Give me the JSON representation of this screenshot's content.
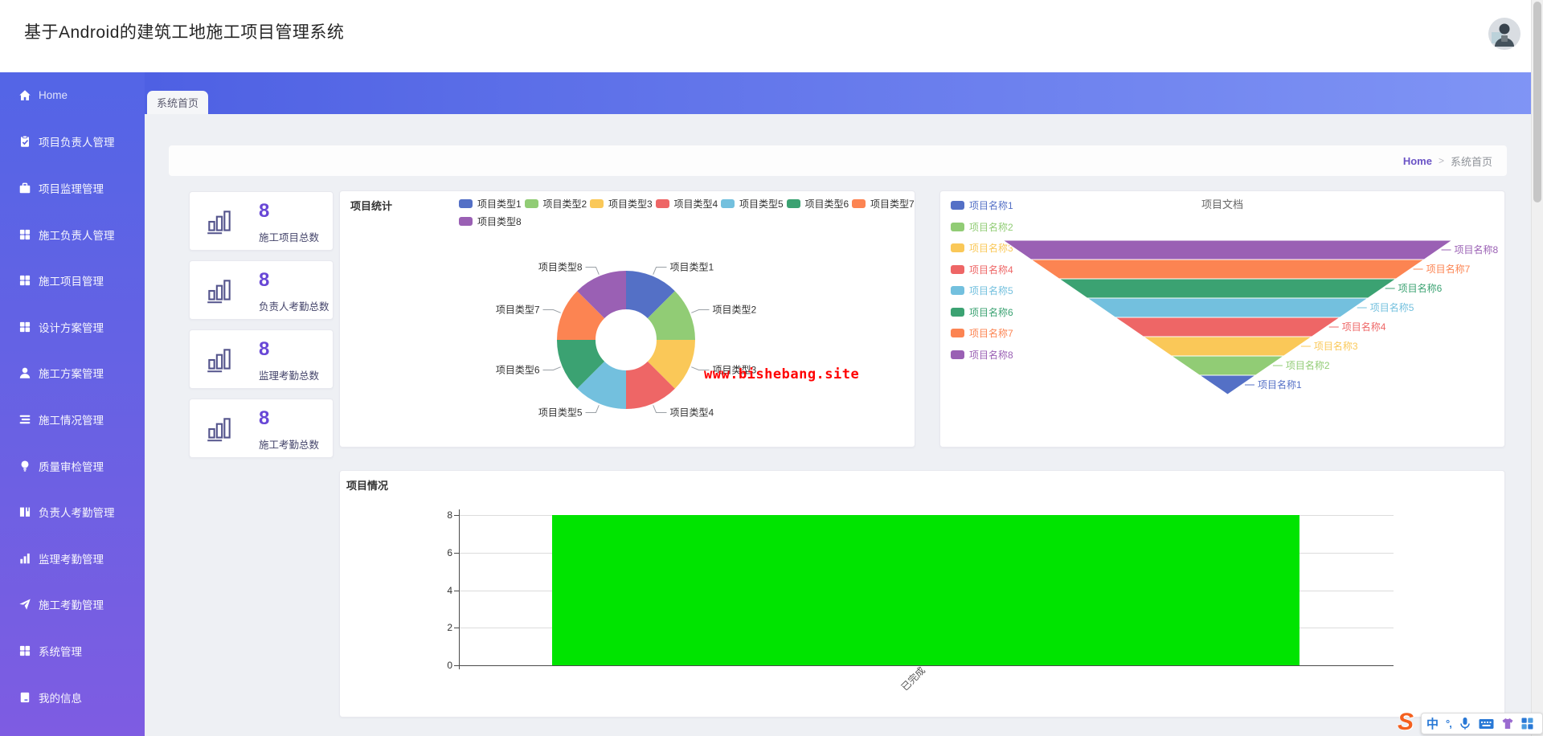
{
  "header": {
    "title": "基于Android的建筑工地施工项目管理系统"
  },
  "sidebar": {
    "items": [
      {
        "label": "Home",
        "icon": "home-icon"
      },
      {
        "label": "项目负责人管理",
        "icon": "clipboard-check-icon"
      },
      {
        "label": "项目监理管理",
        "icon": "briefcase-icon"
      },
      {
        "label": "施工负责人管理",
        "icon": "grid-icon"
      },
      {
        "label": "施工项目管理",
        "icon": "grid-icon"
      },
      {
        "label": "设计方案管理",
        "icon": "grid-icon"
      },
      {
        "label": "施工方案管理",
        "icon": "user-icon"
      },
      {
        "label": "施工情况管理",
        "icon": "list-icon"
      },
      {
        "label": "质量审检管理",
        "icon": "bulb-icon"
      },
      {
        "label": "负责人考勤管理",
        "icon": "book-icon"
      },
      {
        "label": "监理考勤管理",
        "icon": "barchart-icon"
      },
      {
        "label": "施工考勤管理",
        "icon": "send-icon"
      },
      {
        "label": "系统管理",
        "icon": "grid-icon"
      },
      {
        "label": "我的信息",
        "icon": "notebook-icon"
      }
    ]
  },
  "tabs": [
    {
      "label": "系统首页",
      "active": true
    }
  ],
  "breadcrumb": {
    "home": "Home",
    "separator": ">",
    "current": "系统首页"
  },
  "stats": [
    {
      "value": "8",
      "label": "施工项目总数",
      "icon": "bars-icon"
    },
    {
      "value": "8",
      "label": "负责人考勤总数",
      "icon": "bars-icon"
    },
    {
      "value": "8",
      "label": "监理考勤总数",
      "icon": "bars-icon"
    },
    {
      "value": "8",
      "label": "施工考勤总数",
      "icon": "bars-icon"
    }
  ],
  "watermark": {
    "text": "www.bishebang.site",
    "color": "#ff0000"
  },
  "palette": [
    "#5470c6",
    "#91cc75",
    "#fac858",
    "#ee6666",
    "#73c0de",
    "#3ba272",
    "#fc8452",
    "#9a60b4"
  ],
  "chart_data": [
    {
      "type": "pie",
      "title": "项目统计",
      "labels": [
        "项目类型1",
        "项目类型2",
        "项目类型3",
        "项目类型4",
        "项目类型5",
        "项目类型6",
        "项目类型7",
        "项目类型8"
      ],
      "values": [
        1,
        1,
        1,
        1,
        1,
        1,
        1,
        1
      ],
      "colors": [
        "#5470c6",
        "#91cc75",
        "#fac858",
        "#ee6666",
        "#73c0de",
        "#3ba272",
        "#fc8452",
        "#9a60b4"
      ],
      "donut": true,
      "legend_position": "top"
    },
    {
      "type": "funnel",
      "title": "项目文档",
      "labels": [
        "项目名称1",
        "项目名称2",
        "项目名称3",
        "项目名称4",
        "项目名称5",
        "项目名称6",
        "项目名称7",
        "项目名称8"
      ],
      "values": [
        1,
        2,
        3,
        4,
        5,
        6,
        7,
        8
      ],
      "colors": [
        "#5470c6",
        "#91cc75",
        "#fac858",
        "#ee6666",
        "#73c0de",
        "#3ba272",
        "#fc8452",
        "#9a60b4"
      ],
      "sort": "descending-top-wide",
      "legend_position": "left"
    },
    {
      "type": "bar",
      "title": "项目情况",
      "categories": [
        "已完成"
      ],
      "values": [
        8
      ],
      "bar_color": "#00e400",
      "ylim": [
        0,
        8
      ],
      "yticks": [
        0,
        2,
        4,
        6,
        8
      ],
      "grid": true
    }
  ],
  "ime_toolbar": {
    "logo": "sogou-logo-icon",
    "mode_label": "中",
    "punct_label": "°,",
    "icons": [
      "mic-icon",
      "keyboard-icon",
      "skin-icon",
      "toolbox-icon"
    ]
  }
}
